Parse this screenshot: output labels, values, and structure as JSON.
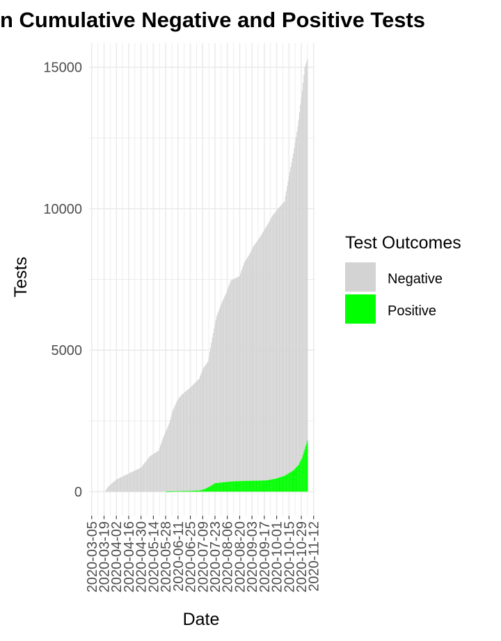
{
  "chart_data": {
    "type": "bar",
    "stacked": true,
    "title": "n Cumulative Negative and Positive Tests",
    "xlabel": "Date",
    "ylabel": "Tests",
    "ylim": [
      -850,
      15850
    ],
    "y_ticks": [
      0,
      5000,
      10000,
      15000
    ],
    "y_tick_labels": [
      "0",
      "5000",
      "10000",
      "15000"
    ],
    "x_range": [
      "2020-03-02",
      "2020-11-13"
    ],
    "x_tick_labels": [
      "2020-03-05",
      "2020-03-19",
      "2020-04-02",
      "2020-04-16",
      "2020-04-30",
      "2020-05-14",
      "2020-05-28",
      "2020-06-11",
      "2020-06-25",
      "2020-07-09",
      "2020-07-23",
      "2020-08-06",
      "2020-08-20",
      "2020-09-03",
      "2020-09-17",
      "2020-10-01",
      "2020-10-15",
      "2020-10-29",
      "2020-11-12"
    ],
    "grid": true,
    "legend": {
      "title": "Test Outcomes",
      "position": "right",
      "entries": [
        {
          "name": "Negative",
          "color": "#d3d3d3"
        },
        {
          "name": "Positive",
          "color": "#00ff00"
        }
      ]
    },
    "series": [
      {
        "name": "Negative",
        "color": "#d3d3d3",
        "points": [
          [
            "2020-03-20",
            0
          ],
          [
            "2020-03-23",
            150
          ],
          [
            "2020-03-28",
            300
          ],
          [
            "2020-04-03",
            450
          ],
          [
            "2020-04-10",
            550
          ],
          [
            "2020-04-20",
            700
          ],
          [
            "2020-04-30",
            850
          ],
          [
            "2020-05-05",
            1050
          ],
          [
            "2020-05-10",
            1250
          ],
          [
            "2020-05-20",
            1450
          ],
          [
            "2020-05-25",
            1900
          ],
          [
            "2020-06-01",
            2400
          ],
          [
            "2020-06-05",
            2850
          ],
          [
            "2020-06-10",
            3200
          ],
          [
            "2020-06-15",
            3400
          ],
          [
            "2020-06-25",
            3650
          ],
          [
            "2020-07-05",
            3950
          ],
          [
            "2020-07-10",
            4300
          ],
          [
            "2020-07-15",
            4450
          ],
          [
            "2020-07-20",
            5200
          ],
          [
            "2020-07-25",
            5900
          ],
          [
            "2020-07-30",
            6300
          ],
          [
            "2020-08-05",
            6700
          ],
          [
            "2020-08-10",
            7100
          ],
          [
            "2020-08-20",
            7250
          ],
          [
            "2020-08-25",
            7700
          ],
          [
            "2020-08-31",
            8000
          ],
          [
            "2020-09-05",
            8300
          ],
          [
            "2020-09-12",
            8600
          ],
          [
            "2020-09-20",
            9000
          ],
          [
            "2020-09-27",
            9350
          ],
          [
            "2020-10-02",
            9500
          ],
          [
            "2020-10-10",
            9700
          ],
          [
            "2020-10-15",
            10500
          ],
          [
            "2020-10-20",
            11200
          ],
          [
            "2020-10-25",
            12000
          ],
          [
            "2020-10-29",
            12800
          ],
          [
            "2020-11-02",
            13500
          ]
        ]
      },
      {
        "name": "Positive",
        "color": "#00ff00",
        "points": [
          [
            "2020-03-20",
            0
          ],
          [
            "2020-05-28",
            0
          ],
          [
            "2020-06-05",
            15
          ],
          [
            "2020-06-20",
            25
          ],
          [
            "2020-07-05",
            40
          ],
          [
            "2020-07-12",
            100
          ],
          [
            "2020-07-18",
            200
          ],
          [
            "2020-07-23",
            300
          ],
          [
            "2020-08-01",
            330
          ],
          [
            "2020-08-10",
            360
          ],
          [
            "2020-08-25",
            380
          ],
          [
            "2020-09-10",
            390
          ],
          [
            "2020-09-20",
            400
          ],
          [
            "2020-09-30",
            460
          ],
          [
            "2020-10-10",
            560
          ],
          [
            "2020-10-20",
            750
          ],
          [
            "2020-10-26",
            950
          ],
          [
            "2020-10-30",
            1200
          ],
          [
            "2020-11-02",
            1500
          ],
          [
            "2020-11-05",
            1800
          ]
        ]
      }
    ]
  }
}
